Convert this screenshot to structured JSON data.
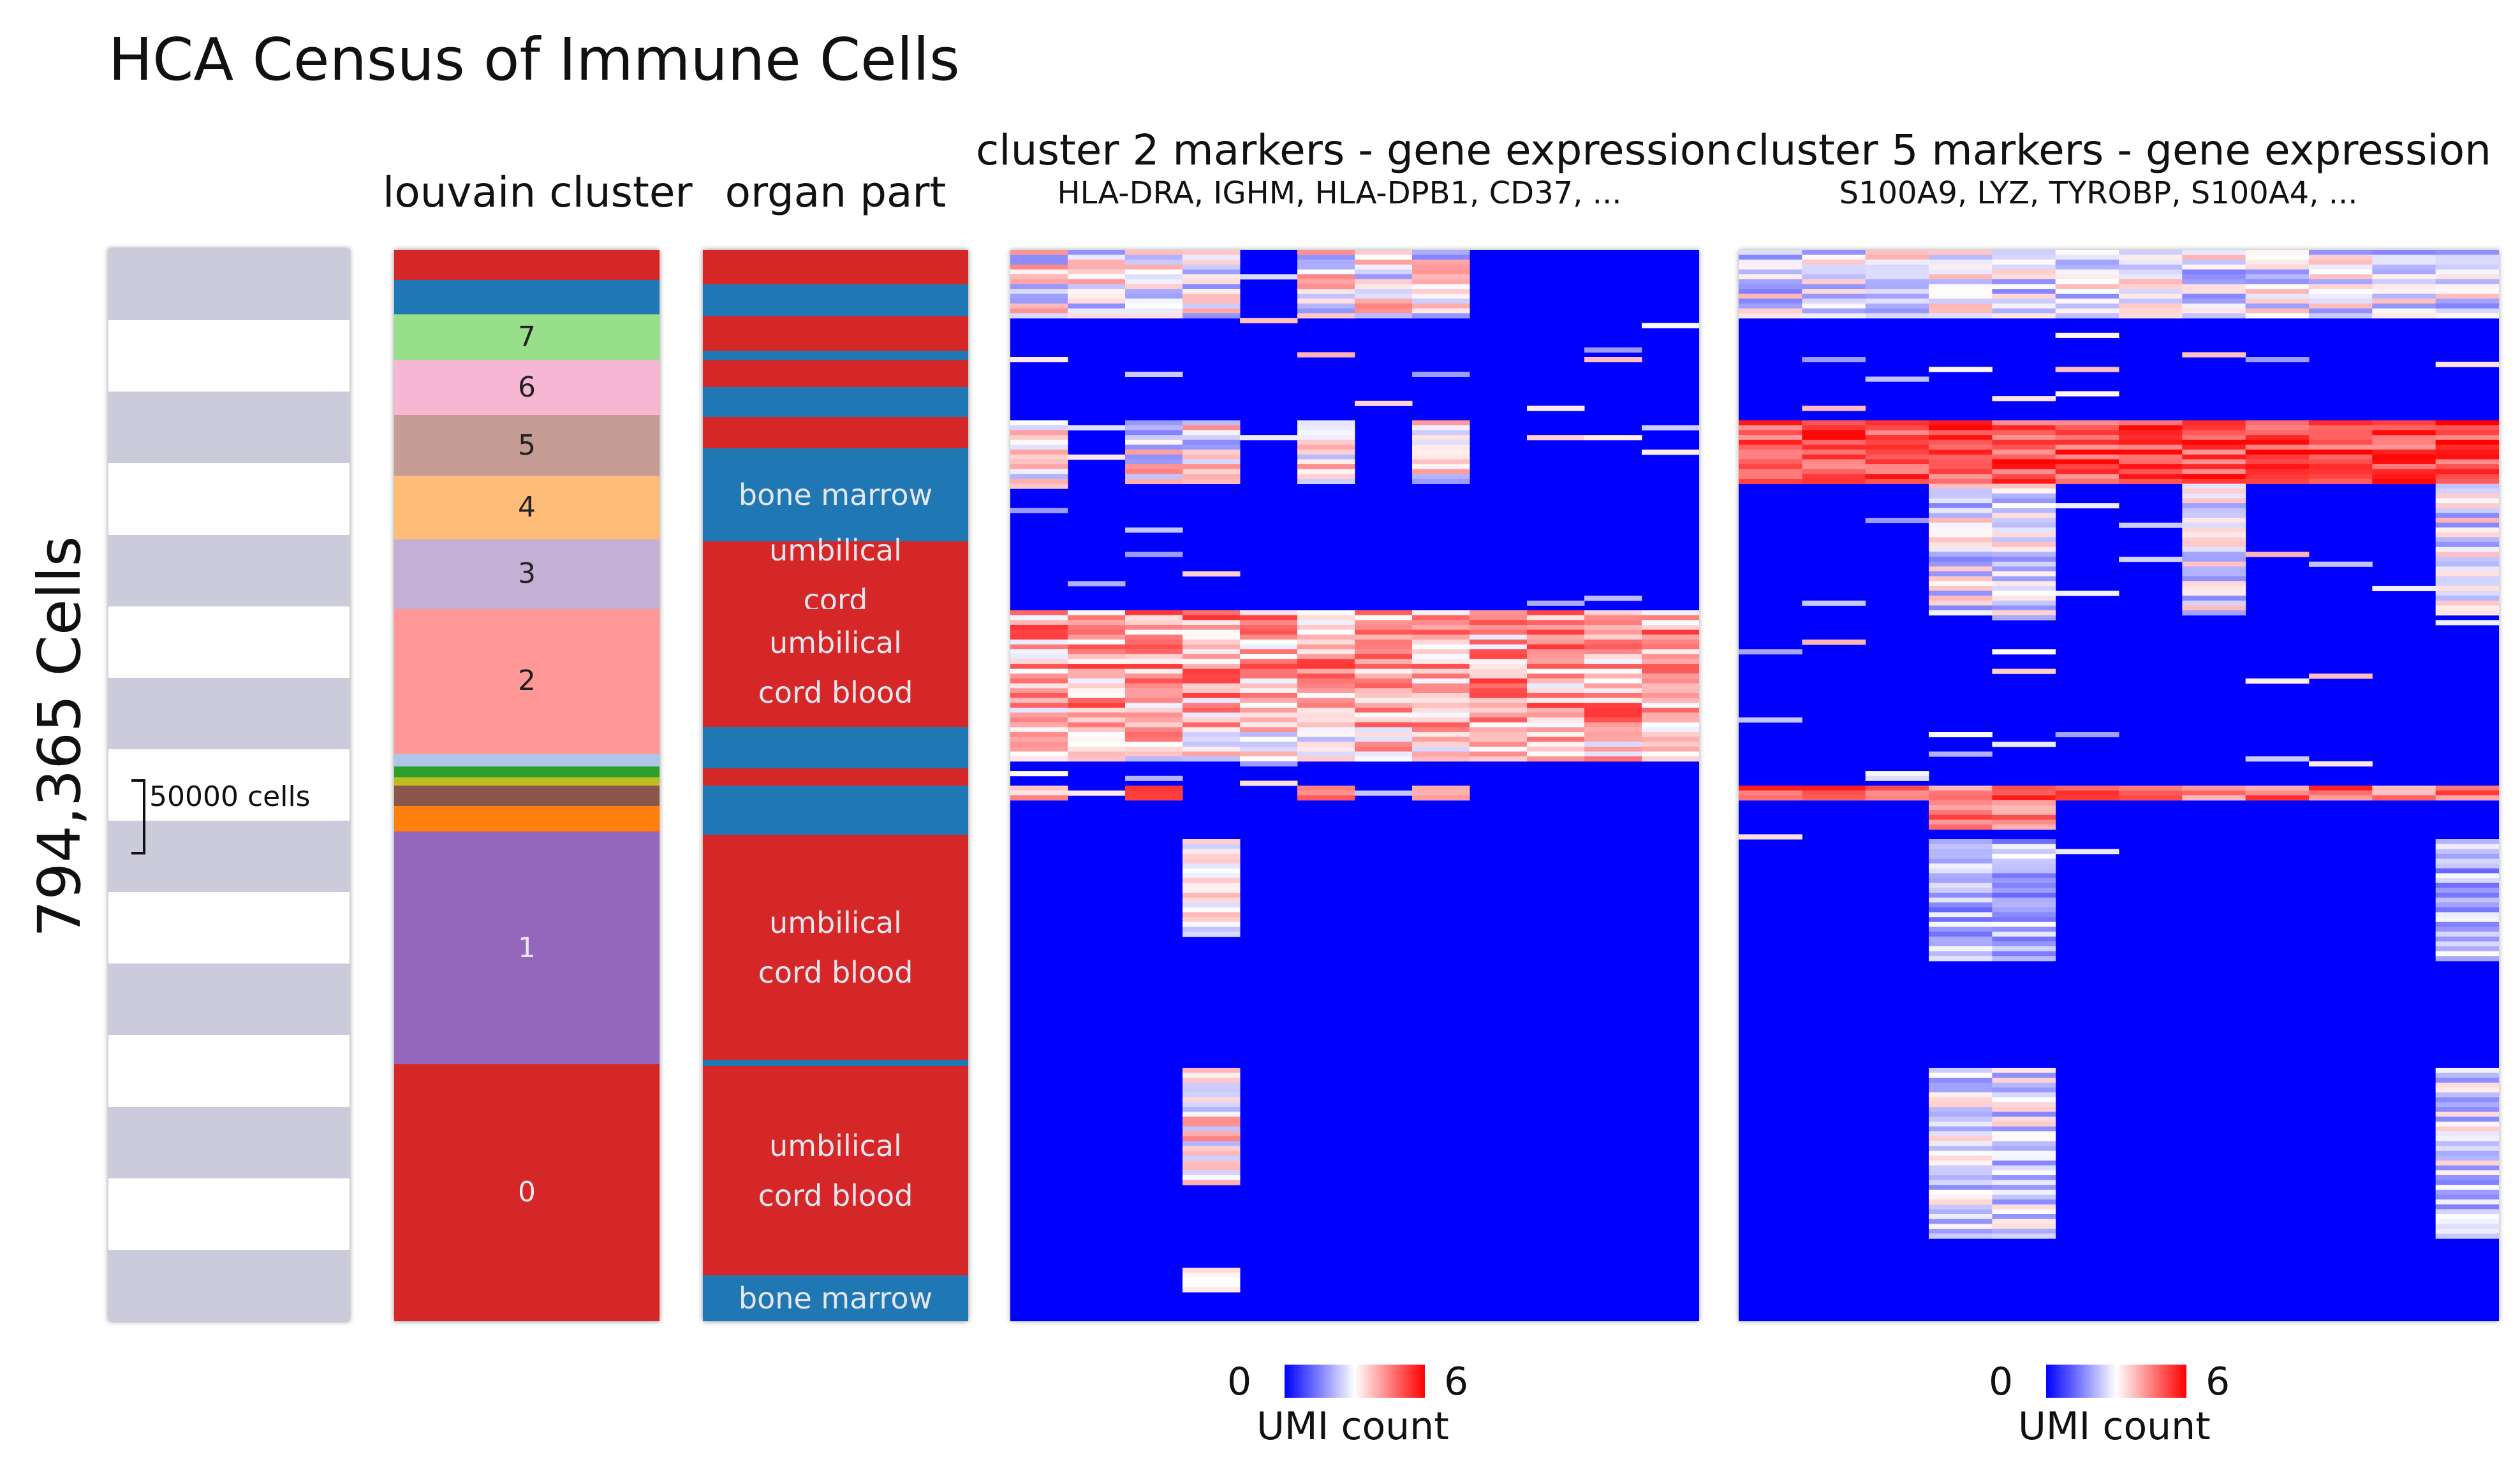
{
  "title": "HCA Census of Immune Cells",
  "cell_count_label": "794,365 Cells",
  "scale_label": "50000 cells",
  "columns": {
    "louvain": {
      "title": "louvain cluster"
    },
    "organ": {
      "title": "organ part"
    },
    "heat2": {
      "title": "cluster 2 markers - gene expression",
      "subtitle": "HLA-DRA, IGHM, HLA-DPB1, CD37, ..."
    },
    "heat5": {
      "title": "cluster 5 markers - gene expression",
      "subtitle": "S100A9, LYZ, TYROBP, S100A4, ..."
    }
  },
  "louvain_clusters": [
    {
      "label": "",
      "color": "#d62728",
      "from": 0.0,
      "to": 0.028
    },
    {
      "label": "",
      "color": "#1f77b4",
      "from": 0.028,
      "to": 0.06
    },
    {
      "label": "7",
      "color": "#98df8a",
      "from": 0.06,
      "to": 0.103
    },
    {
      "label": "6",
      "color": "#f7b6d2",
      "from": 0.103,
      "to": 0.154
    },
    {
      "label": "5",
      "color": "#c49c94",
      "from": 0.154,
      "to": 0.211
    },
    {
      "label": "4",
      "color": "#ffbb78",
      "from": 0.211,
      "to": 0.27
    },
    {
      "label": "3",
      "color": "#c5b0d5",
      "from": 0.27,
      "to": 0.335
    },
    {
      "label": "2",
      "color": "#ff9896",
      "from": 0.335,
      "to": 0.47
    },
    {
      "label": "",
      "color": "#aec7e8",
      "from": 0.47,
      "to": 0.482
    },
    {
      "label": "",
      "color": "#2ca02c",
      "from": 0.482,
      "to": 0.492
    },
    {
      "label": "",
      "color": "#bcbd22",
      "from": 0.492,
      "to": 0.5
    },
    {
      "label": "",
      "color": "#8c564b",
      "from": 0.5,
      "to": 0.519
    },
    {
      "label": "",
      "color": "#ff7f0e",
      "from": 0.519,
      "to": 0.543
    },
    {
      "label": "1",
      "color": "#9467bd",
      "from": 0.543,
      "to": 0.76
    },
    {
      "label": "0",
      "color": "#d62728",
      "from": 0.76,
      "to": 1.0
    }
  ],
  "organ_parts": [
    {
      "label": "",
      "color": "#d62728",
      "from": 0.0,
      "to": 0.032
    },
    {
      "label": "",
      "color": "#1f77b4",
      "from": 0.032,
      "to": 0.062
    },
    {
      "label": "",
      "color": "#d62728",
      "from": 0.062,
      "to": 0.094
    },
    {
      "label": "",
      "color": "#1f77b4",
      "from": 0.094,
      "to": 0.103
    },
    {
      "label": "",
      "color": "#d62728",
      "from": 0.103,
      "to": 0.128
    },
    {
      "label": "",
      "color": "#1f77b4",
      "from": 0.128,
      "to": 0.156
    },
    {
      "label": "",
      "color": "#d62728",
      "from": 0.156,
      "to": 0.185
    },
    {
      "label": "bone marrow",
      "color": "#1f77b4",
      "from": 0.185,
      "to": 0.272
    },
    {
      "label": "umbilical cord",
      "color": "#d62728",
      "from": 0.272,
      "to": 0.335
    },
    {
      "label": "umbilical cord blood",
      "color": "#d62728",
      "from": 0.335,
      "to": 0.445
    },
    {
      "label": "",
      "color": "#1f77b4",
      "from": 0.445,
      "to": 0.484
    },
    {
      "label": "",
      "color": "#d62728",
      "from": 0.484,
      "to": 0.5
    },
    {
      "label": "",
      "color": "#1f77b4",
      "from": 0.5,
      "to": 0.517
    },
    {
      "label": "",
      "color": "#1f77b4",
      "from": 0.517,
      "to": 0.546
    },
    {
      "label": "umbilical cord blood",
      "color": "#d62728",
      "from": 0.546,
      "to": 0.756
    },
    {
      "label": "",
      "color": "#1f77b4",
      "from": 0.756,
      "to": 0.762
    },
    {
      "label": "umbilical cord blood",
      "color": "#d62728",
      "from": 0.762,
      "to": 0.957
    },
    {
      "label": "bone marrow",
      "color": "#1f77b4",
      "from": 0.957,
      "to": 1.0
    }
  ],
  "scale_stripes": {
    "count": 15,
    "colors": [
      "#cccbdc",
      "#ffffff"
    ]
  },
  "legends": [
    {
      "min": "0",
      "max": "6",
      "label": "UMI count"
    },
    {
      "min": "0",
      "max": "6",
      "label": "UMI count"
    }
  ],
  "colors": {
    "low": "#0000ff",
    "mid": "#ffffff",
    "high": "#ff0000"
  }
}
